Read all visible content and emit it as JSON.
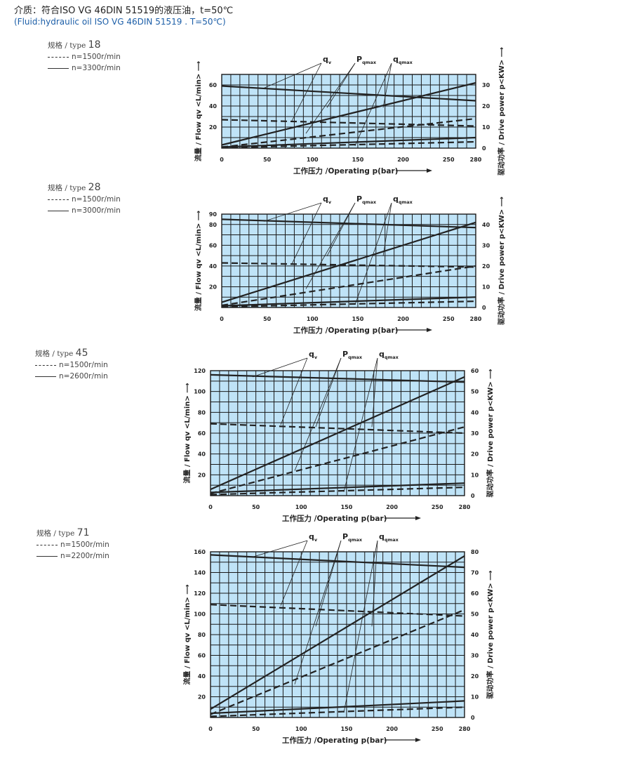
{
  "header": {
    "line1": "介质：符合ISO VG 46DIN 51519的液压油，t=50℃",
    "line2": "(Fluid:hydraulic oil  ISO VG 46DIN 51519 . T=50℃)"
  },
  "colors": {
    "plot_bg": "#bfe3f7",
    "grid": "#1a1a1a",
    "curve": "#222222",
    "header2": "#1d5fa8"
  },
  "chart_data": [
    {
      "type": "line",
      "legend": {
        "title_prefix": "规格 / type",
        "type_number": "18",
        "dashed_label": "n=1500r/min",
        "solid_label": "n=3300r/min"
      },
      "xlabel": "工作压力 /Operating p(bar)",
      "ylabel_left": "流量 / Flow  qv <L/min>",
      "ylabel_right": "驱动功率 / Drive power p<KW>",
      "xlim": [
        0,
        280
      ],
      "x_ticks": [
        "0",
        "50",
        "100",
        "150",
        "200",
        "250",
        "280"
      ],
      "y_left_lim": [
        0,
        70
      ],
      "y_left_ticks": [
        "20",
        "40",
        "60"
      ],
      "y_right_lim": [
        0,
        35
      ],
      "y_right_ticks": [
        "0",
        "10",
        "20",
        "30"
      ],
      "annotations": [
        {
          "label": "q",
          "sub": "v"
        },
        {
          "label": "P",
          "sub": "qmax"
        },
        {
          "label": "q",
          "sub": "qmax"
        }
      ],
      "series": [
        {
          "style": "solid",
          "axis": "left",
          "x": [
            0,
            280
          ],
          "y": [
            59,
            45
          ]
        },
        {
          "style": "dashed",
          "axis": "left",
          "x": [
            0,
            280
          ],
          "y": [
            27,
            21
          ]
        },
        {
          "style": "solid",
          "axis": "right",
          "x": [
            0,
            280
          ],
          "y": [
            1.5,
            31
          ]
        },
        {
          "style": "dashed",
          "axis": "right",
          "x": [
            0,
            280
          ],
          "y": [
            0.5,
            14
          ]
        },
        {
          "style": "solid",
          "axis": "right",
          "x": [
            0,
            280
          ],
          "y": [
            0.5,
            5
          ]
        },
        {
          "style": "dashed",
          "axis": "right",
          "x": [
            0,
            280
          ],
          "y": [
            0.2,
            3
          ]
        }
      ]
    },
    {
      "type": "line",
      "legend": {
        "title_prefix": "规格 / type",
        "type_number": "28",
        "dashed_label": "n=1500r/min",
        "solid_label": "n=3000r/min"
      },
      "xlabel": "工作压力 /Operating p(bar)",
      "ylabel_left": "流量 / Flow  qv <L/min>",
      "ylabel_right": "驱动功率 / Drive power p<KW>",
      "xlim": [
        0,
        280
      ],
      "x_ticks": [
        "0",
        "50",
        "100",
        "150",
        "200",
        "250",
        "280"
      ],
      "y_left_lim": [
        0,
        90
      ],
      "y_left_ticks": [
        "20",
        "40",
        "60",
        "80",
        "90"
      ],
      "y_right_lim": [
        0,
        45
      ],
      "y_right_ticks": [
        "0",
        "10",
        "20",
        "30",
        "40"
      ],
      "annotations": [
        {
          "label": "q",
          "sub": "v"
        },
        {
          "label": "P",
          "sub": "qmax"
        },
        {
          "label": "q",
          "sub": "qmax"
        }
      ],
      "series": [
        {
          "style": "solid",
          "axis": "left",
          "x": [
            0,
            280
          ],
          "y": [
            85,
            77
          ]
        },
        {
          "style": "dashed",
          "axis": "left",
          "x": [
            0,
            280
          ],
          "y": [
            43,
            39
          ]
        },
        {
          "style": "solid",
          "axis": "right",
          "x": [
            0,
            280
          ],
          "y": [
            2.5,
            41
          ]
        },
        {
          "style": "dashed",
          "axis": "right",
          "x": [
            0,
            280
          ],
          "y": [
            1,
            20
          ]
        },
        {
          "style": "solid",
          "axis": "right",
          "x": [
            0,
            280
          ],
          "y": [
            0.8,
            5
          ]
        },
        {
          "style": "dashed",
          "axis": "right",
          "x": [
            0,
            280
          ],
          "y": [
            0.3,
            3
          ]
        }
      ]
    },
    {
      "type": "line",
      "legend": {
        "title_prefix": "规格 / type",
        "type_number": "45",
        "dashed_label": "n=1500r/min",
        "solid_label": "n=2600r/min"
      },
      "xlabel": "工作压力 /Operating p(bar)",
      "ylabel_left": "流量 / Flow  qv <L/min>",
      "ylabel_right": "驱动功率 / Drive power p<KW>",
      "xlim": [
        0,
        280
      ],
      "x_ticks": [
        "0",
        "50",
        "100",
        "150",
        "200",
        "250",
        "280"
      ],
      "y_left_lim": [
        0,
        120
      ],
      "y_left_ticks": [
        "20",
        "40",
        "60",
        "80",
        "100",
        "120"
      ],
      "y_right_lim": [
        0,
        60
      ],
      "y_right_ticks": [
        "0",
        "10",
        "20",
        "30",
        "40",
        "50",
        "60"
      ],
      "annotations": [
        {
          "label": "q",
          "sub": "v"
        },
        {
          "label": "P",
          "sub": "qmax"
        },
        {
          "label": "q",
          "sub": "qmax"
        }
      ],
      "series": [
        {
          "style": "solid",
          "axis": "left",
          "x": [
            0,
            280
          ],
          "y": [
            116,
            109
          ]
        },
        {
          "style": "dashed",
          "axis": "left",
          "x": [
            0,
            280
          ],
          "y": [
            69,
            60
          ]
        },
        {
          "style": "solid",
          "axis": "right",
          "x": [
            0,
            280
          ],
          "y": [
            3,
            57
          ]
        },
        {
          "style": "dashed",
          "axis": "right",
          "x": [
            0,
            280
          ],
          "y": [
            1,
            33
          ]
        },
        {
          "style": "solid",
          "axis": "right",
          "x": [
            0,
            280
          ],
          "y": [
            1.5,
            6
          ]
        },
        {
          "style": "dashed",
          "axis": "right",
          "x": [
            0,
            280
          ],
          "y": [
            0.5,
            4
          ]
        }
      ]
    },
    {
      "type": "line",
      "legend": {
        "title_prefix": "规格 / type",
        "type_number": "71",
        "dashed_label": "n=1500r/min",
        "solid_label": "n=2200r/min"
      },
      "xlabel": "工作压力 /Operating p(bar)",
      "ylabel_left": "流量 / Flow  qv <L/min>",
      "ylabel_right": "驱动功率 / Drive power p<KW>",
      "xlim": [
        0,
        280
      ],
      "x_ticks": [
        "0",
        "50",
        "100",
        "150",
        "200",
        "250",
        "280"
      ],
      "y_left_lim": [
        0,
        160
      ],
      "y_left_ticks": [
        "20",
        "40",
        "60",
        "80",
        "100",
        "120",
        "140",
        "160"
      ],
      "y_right_lim": [
        0,
        80
      ],
      "y_right_ticks": [
        "0",
        "10",
        "20",
        "30",
        "40",
        "50",
        "60",
        "70",
        "80"
      ],
      "annotations": [
        {
          "label": "q",
          "sub": "v"
        },
        {
          "label": "P",
          "sub": "qmax"
        },
        {
          "label": "q",
          "sub": "qmax"
        }
      ],
      "series": [
        {
          "style": "solid",
          "axis": "left",
          "x": [
            0,
            280
          ],
          "y": [
            157,
            145
          ]
        },
        {
          "style": "dashed",
          "axis": "left",
          "x": [
            0,
            280
          ],
          "y": [
            109,
            98
          ]
        },
        {
          "style": "solid",
          "axis": "right",
          "x": [
            0,
            280
          ],
          "y": [
            4,
            78
          ]
        },
        {
          "style": "dashed",
          "axis": "right",
          "x": [
            0,
            280
          ],
          "y": [
            1.5,
            52
          ]
        },
        {
          "style": "solid",
          "axis": "right",
          "x": [
            0,
            280
          ],
          "y": [
            2,
            8
          ]
        },
        {
          "style": "dashed",
          "axis": "right",
          "x": [
            0,
            280
          ],
          "y": [
            0.5,
            5
          ]
        }
      ]
    }
  ]
}
